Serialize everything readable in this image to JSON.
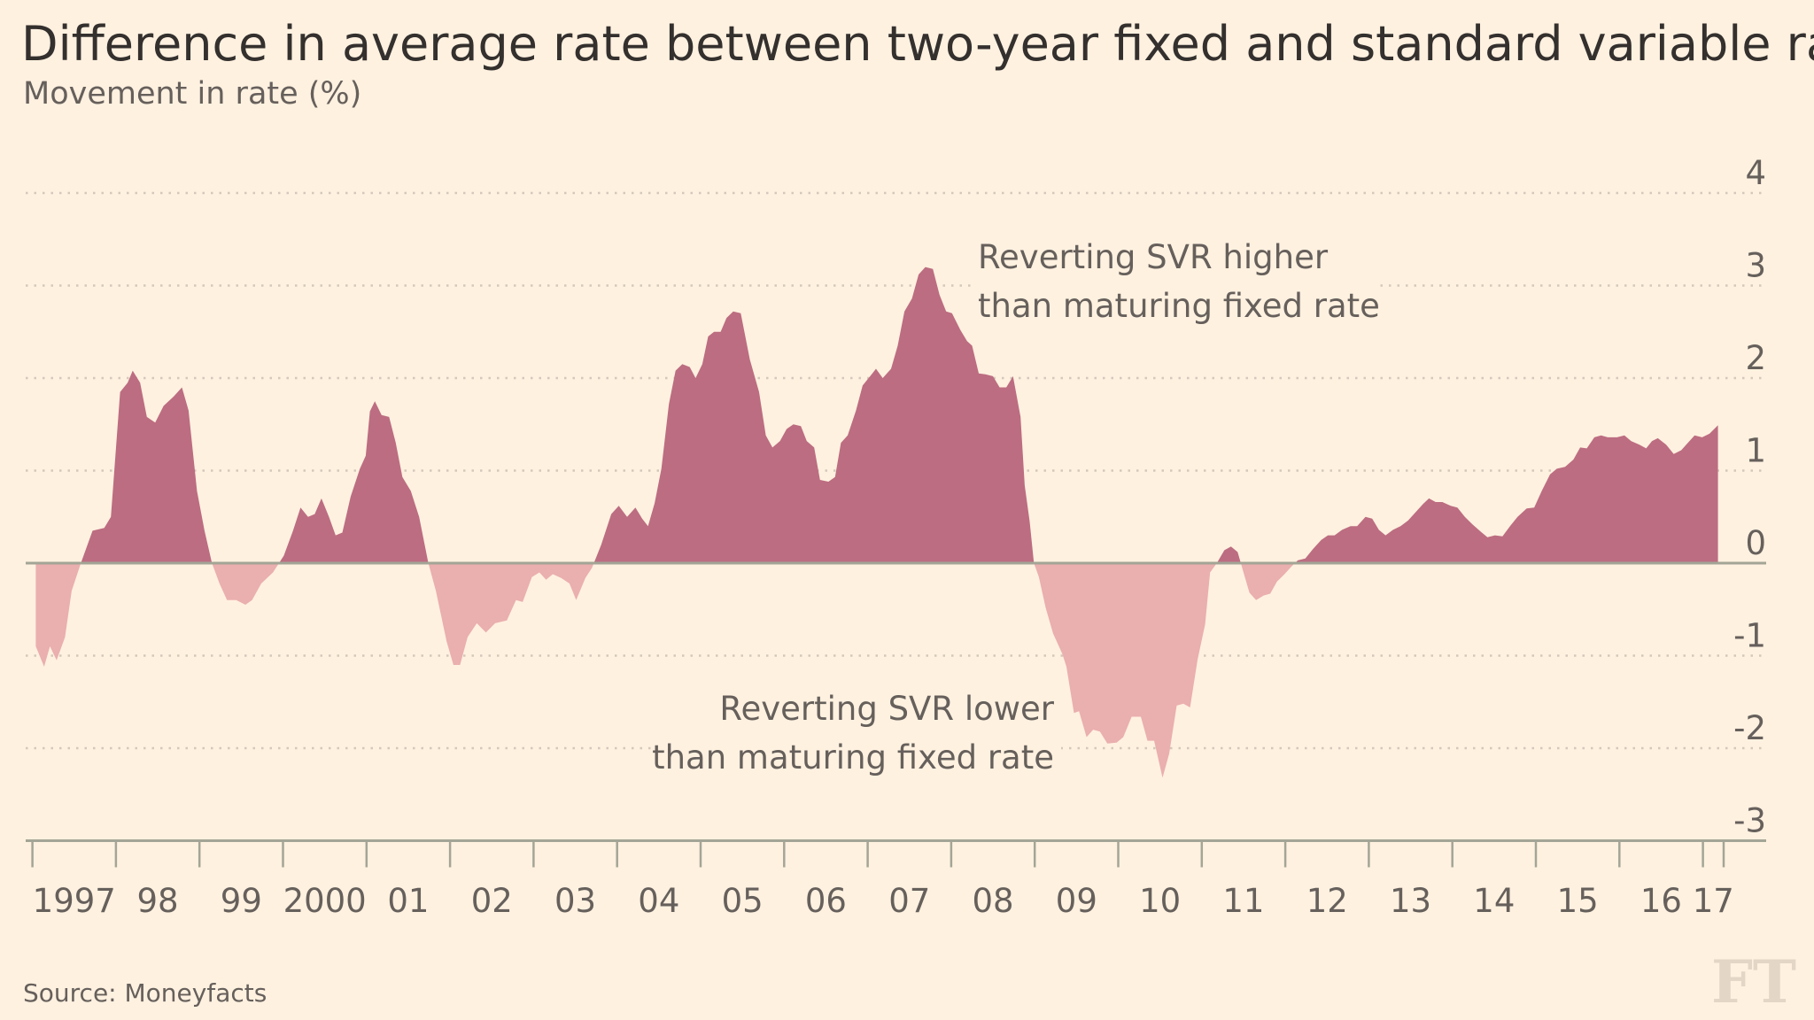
{
  "title": "Difference in average rate between two-year fixed and standard variable rate",
  "subtitle": "Movement in rate (%)",
  "source": "Source: Moneyfacts",
  "logo": "FT",
  "colors": {
    "background": "#fff1e0",
    "positive": "#bc6d81",
    "negative": "#eaafaf",
    "text": "#66605c",
    "zero_line": "#a3a596",
    "grid": "#d3c8bb"
  },
  "annotations": {
    "higher_line1": "Reverting SVR higher",
    "higher_line2": "than maturing fixed rate",
    "lower_line1": "Reverting SVR lower",
    "lower_line2": "than maturing fixed rate"
  },
  "chart_data": {
    "type": "area",
    "title": "Difference in average rate between two-year fixed and standard variable rate",
    "subtitle": "Movement in rate (%)",
    "ylim": [
      -3,
      4
    ],
    "xlim": [
      1997,
      2017.2
    ],
    "grid": true,
    "y_ticks": [
      "4",
      "3",
      "2",
      "1",
      "0",
      "-1",
      "-2",
      "-3"
    ],
    "x_tick_labels": [
      "1997",
      "98",
      "99",
      "2000",
      "01",
      "02",
      "03",
      "04",
      "05",
      "06",
      "07",
      "08",
      "09",
      "10",
      "11",
      "12",
      "13",
      "14",
      "15",
      "16",
      "17"
    ],
    "x": [
      1997.04,
      1997.14,
      1997.21,
      1997.29,
      1997.39,
      1997.47,
      1997.58,
      1997.72,
      1997.86,
      1997.94,
      1998.05,
      1998.14,
      1998.2,
      1998.29,
      1998.37,
      1998.47,
      1998.57,
      1998.69,
      1998.79,
      1998.87,
      1998.97,
      1999.06,
      1999.15,
      1999.24,
      1999.33,
      1999.44,
      1999.55,
      1999.63,
      1999.74,
      1999.88,
      2000.01,
      2000.12,
      2000.21,
      2000.3,
      2000.38,
      2000.46,
      2000.55,
      2000.63,
      2000.71,
      2000.81,
      2000.92,
      2000.99,
      2001.04,
      2001.1,
      2001.18,
      2001.27,
      2001.35,
      2001.43,
      2001.53,
      2001.63,
      2001.74,
      2001.83,
      2001.96,
      2002.04,
      2002.12,
      2002.21,
      2002.32,
      2002.43,
      2002.54,
      2002.68,
      2002.79,
      2002.87,
      2002.98,
      2003.07,
      2003.15,
      2003.23,
      2003.33,
      2003.43,
      2003.51,
      2003.62,
      2003.7,
      2003.81,
      2003.93,
      2004.02,
      2004.12,
      2004.22,
      2004.3,
      2004.37,
      2004.45,
      2004.53,
      2004.62,
      2004.7,
      2004.78,
      2004.87,
      2004.94,
      2005.02,
      2005.09,
      2005.16,
      2005.24,
      2005.31,
      2005.39,
      2005.48,
      2005.59,
      2005.7,
      2005.78,
      2005.86,
      2005.95,
      2006.03,
      2006.11,
      2006.2,
      2006.27,
      2006.36,
      2006.43,
      2006.53,
      2006.61,
      2006.68,
      2006.76,
      2006.86,
      2006.94,
      2007.03,
      2007.1,
      2007.18,
      2007.28,
      2007.36,
      2007.44,
      2007.53,
      2007.61,
      2007.69,
      2007.78,
      2007.86,
      2007.94,
      2008.01,
      2008.11,
      2008.19,
      2008.25,
      2008.33,
      2008.41,
      2008.5,
      2008.58,
      2008.66,
      2008.74,
      2008.83,
      2008.88,
      2008.94,
      2008.99,
      2009.05,
      2009.13,
      2009.22,
      2009.33,
      2009.38,
      2009.47,
      2009.53,
      2009.62,
      2009.7,
      2009.78,
      2009.87,
      2009.98,
      2010.06,
      2010.16,
      2010.27,
      2010.35,
      2010.43,
      2010.53,
      2010.61,
      2010.7,
      2010.78,
      2010.86,
      2010.95,
      2011.04,
      2011.1,
      2011.18,
      2011.27,
      2011.35,
      2011.43,
      2011.5,
      2011.57,
      2011.65,
      2011.74,
      2011.82,
      2011.9,
      2011.99,
      2012.07,
      2012.15,
      2012.24,
      2012.33,
      2012.43,
      2012.51,
      2012.59,
      2012.68,
      2012.78,
      2012.86,
      2012.96,
      2013.04,
      2013.12,
      2013.2,
      2013.29,
      2013.38,
      2013.47,
      2013.56,
      2013.65,
      2013.72,
      2013.8,
      2013.88,
      2013.98,
      2014.06,
      2014.15,
      2014.24,
      2014.34,
      2014.42,
      2014.51,
      2014.6,
      2014.69,
      2014.78,
      2014.89,
      2014.98,
      2015.07,
      2015.17,
      2015.25,
      2015.35,
      2015.45,
      2015.53,
      2015.61,
      2015.7,
      2015.78,
      2015.86,
      2015.97,
      2016.06,
      2016.14,
      2016.24,
      2016.32,
      2016.39,
      2016.46,
      2016.56,
      2016.65,
      2016.74,
      2016.82,
      2016.9,
      2016.99,
      2017.08,
      2017.18
    ],
    "y": [
      -0.9,
      -1.12,
      -0.9,
      -1.05,
      -0.8,
      -0.3,
      0,
      0.35,
      0.38,
      0.5,
      1.85,
      1.95,
      2.08,
      1.95,
      1.58,
      1.52,
      1.7,
      1.8,
      1.9,
      1.65,
      0.78,
      0.35,
      0,
      -0.22,
      -0.4,
      -0.4,
      -0.45,
      -0.4,
      -0.22,
      -0.1,
      0.08,
      0.35,
      0.6,
      0.5,
      0.53,
      0.7,
      0.5,
      0.3,
      0.33,
      0.72,
      1.02,
      1.16,
      1.64,
      1.75,
      1.6,
      1.58,
      1.3,
      0.93,
      0.78,
      0.5,
      0,
      -0.3,
      -0.85,
      -1.1,
      -1.1,
      -0.8,
      -0.65,
      -0.75,
      -0.65,
      -0.62,
      -0.4,
      -0.42,
      -0.15,
      -0.1,
      -0.18,
      -0.12,
      -0.16,
      -0.22,
      -0.4,
      -0.16,
      -0.05,
      0.2,
      0.53,
      0.62,
      0.5,
      0.6,
      0.48,
      0.4,
      0.65,
      1.02,
      1.72,
      2.08,
      2.15,
      2.12,
      2.0,
      2.15,
      2.45,
      2.5,
      2.5,
      2.65,
      2.72,
      2.7,
      2.2,
      1.85,
      1.38,
      1.25,
      1.32,
      1.45,
      1.5,
      1.48,
      1.32,
      1.25,
      0.9,
      0.88,
      0.93,
      1.3,
      1.38,
      1.65,
      1.92,
      2.02,
      2.1,
      2.0,
      2.1,
      2.35,
      2.72,
      2.86,
      3.12,
      3.2,
      3.18,
      2.9,
      2.72,
      2.7,
      2.52,
      2.4,
      2.35,
      2.05,
      2.04,
      2.02,
      1.9,
      1.9,
      2.02,
      1.58,
      0.84,
      0.45,
      0,
      -0.15,
      -0.48,
      -0.76,
      -0.98,
      -1.12,
      -1.62,
      -1.6,
      -1.88,
      -1.8,
      -1.82,
      -1.95,
      -1.94,
      -1.88,
      -1.66,
      -1.66,
      -1.92,
      -1.92,
      -2.32,
      -2.06,
      -1.54,
      -1.52,
      -1.56,
      -1.04,
      -0.66,
      -0.1,
      0,
      0.14,
      0.18,
      0.12,
      -0.1,
      -0.32,
      -0.4,
      -0.35,
      -0.33,
      -0.2,
      -0.12,
      -0.04,
      0.03,
      0.05,
      0.15,
      0.25,
      0.3,
      0.3,
      0.36,
      0.4,
      0.4,
      0.5,
      0.48,
      0.36,
      0.3,
      0.36,
      0.4,
      0.46,
      0.55,
      0.64,
      0.7,
      0.66,
      0.66,
      0.62,
      0.6,
      0.5,
      0.42,
      0.34,
      0.28,
      0.3,
      0.29,
      0.4,
      0.5,
      0.59,
      0.6,
      0.78,
      0.96,
      1.02,
      1.04,
      1.12,
      1.25,
      1.24,
      1.36,
      1.38,
      1.36,
      1.36,
      1.38,
      1.32,
      1.28,
      1.24,
      1.32,
      1.35,
      1.28,
      1.18,
      1.22,
      1.3,
      1.38,
      1.36,
      1.4,
      1.49
    ]
  }
}
